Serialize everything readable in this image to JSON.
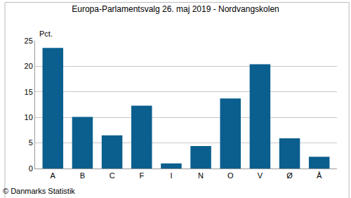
{
  "chart_data": {
    "type": "bar",
    "title": "Europa-Parlamentsvalg 26. maj 2019 - Nordvangskolen",
    "ylabel": "Pct.",
    "source": "© Danmarks Statistik",
    "categories": [
      "A",
      "B",
      "C",
      "F",
      "I",
      "N",
      "O",
      "V",
      "Ø",
      "Å"
    ],
    "values": [
      23.6,
      10.1,
      6.5,
      12.3,
      1.0,
      4.4,
      13.7,
      20.4,
      5.9,
      2.3
    ],
    "color": "#0a5f8e",
    "ylim": [
      0,
      25
    ],
    "yticks": [
      0,
      5,
      10,
      15,
      20,
      25
    ],
    "grid": true
  }
}
